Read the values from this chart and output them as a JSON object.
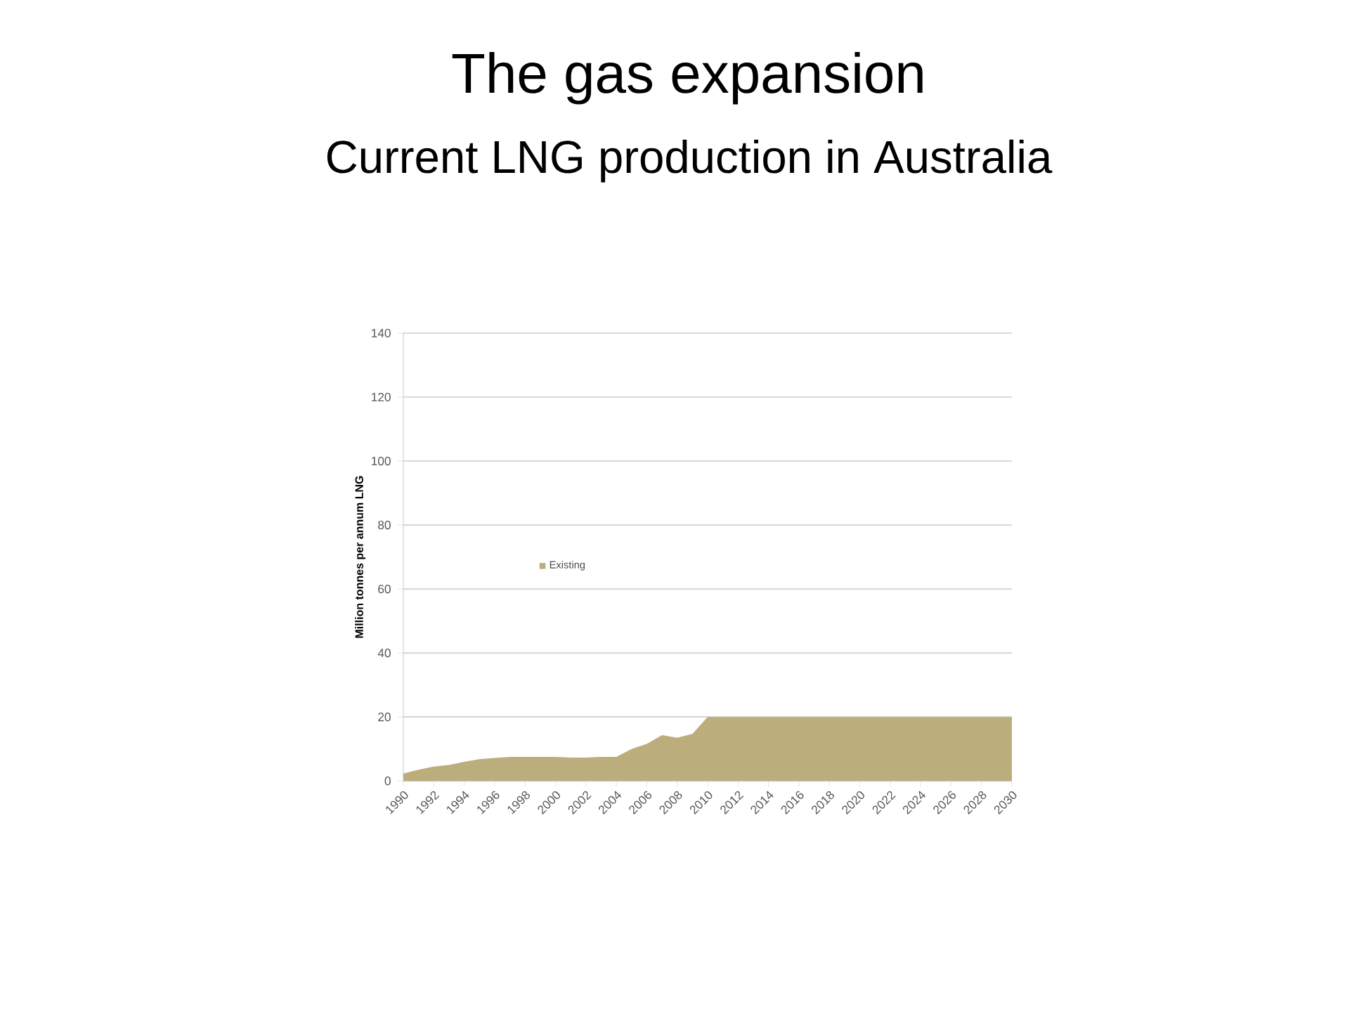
{
  "chart_data": {
    "type": "area",
    "title": "The gas expansion",
    "subtitle": "Current LNG production in Australia",
    "ylabel": "Million tonnes per annum LNG",
    "x": [
      1990,
      1991,
      1992,
      1993,
      1994,
      1995,
      1996,
      1997,
      1998,
      1999,
      2000,
      2001,
      2002,
      2003,
      2004,
      2005,
      2006,
      2007,
      2008,
      2009,
      2010,
      2011,
      2012,
      2013,
      2014,
      2015,
      2016,
      2017,
      2018,
      2019,
      2020,
      2021,
      2022,
      2023,
      2024,
      2025,
      2026,
      2027,
      2028,
      2029,
      2030
    ],
    "series": [
      {
        "name": "Existing",
        "color": "#bcad7c",
        "values": [
          2.3,
          3.5,
          4.5,
          5,
          6,
          6.8,
          7.2,
          7.5,
          7.5,
          7.5,
          7.5,
          7.3,
          7.3,
          7.5,
          7.5,
          10,
          11.6,
          14.3,
          13.5,
          14.7,
          20,
          20,
          20,
          20,
          20,
          20,
          20,
          20,
          20,
          20,
          20,
          20,
          20,
          20,
          20,
          20,
          20,
          20,
          20,
          20,
          20
        ]
      }
    ],
    "xlim": [
      1990,
      2030
    ],
    "xticks": [
      1990,
      1992,
      1994,
      1996,
      1998,
      2000,
      2002,
      2004,
      2006,
      2008,
      2010,
      2012,
      2014,
      2016,
      2018,
      2020,
      2022,
      2024,
      2026,
      2028,
      2030
    ],
    "ylim": [
      0,
      140
    ],
    "yticks": [
      0,
      20,
      40,
      60,
      80,
      100,
      120,
      140
    ],
    "grid": "y",
    "legend": "left"
  }
}
